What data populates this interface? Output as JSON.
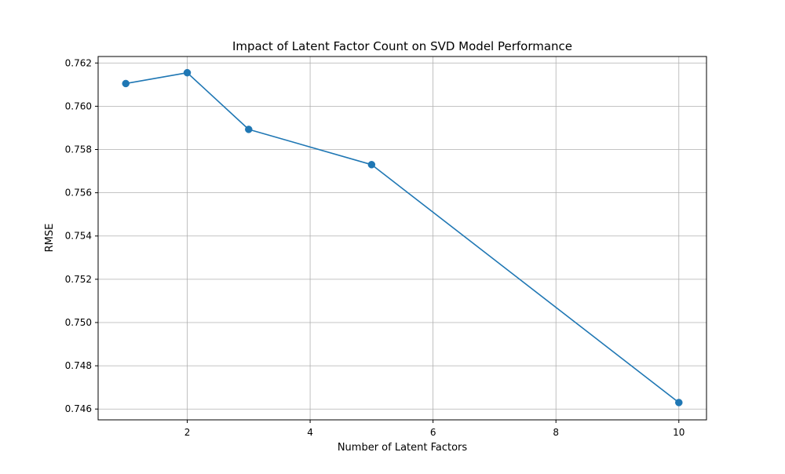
{
  "chart_data": {
    "type": "line",
    "title": "Impact of Latent Factor Count on SVD Model Performance",
    "xlabel": "Number of Latent Factors",
    "ylabel": "RMSE",
    "x": [
      1,
      2,
      3,
      5,
      10
    ],
    "series": [
      {
        "name": "",
        "values": [
          0.76105,
          0.76155,
          0.75893,
          0.7573,
          0.7463
        ],
        "color": "#1f77b4",
        "marker": "circle"
      }
    ],
    "xlim": [
      0.55,
      10.45
    ],
    "ylim": [
      0.7455,
      0.7623
    ],
    "xticks": [
      2,
      4,
      6,
      8,
      10
    ],
    "xtick_labels": [
      "2",
      "4",
      "6",
      "8",
      "10"
    ],
    "yticks": [
      0.746,
      0.748,
      0.75,
      0.752,
      0.754,
      0.756,
      0.758,
      0.76,
      0.762
    ],
    "ytick_labels": [
      "0.746",
      "0.748",
      "0.750",
      "0.752",
      "0.754",
      "0.756",
      "0.758",
      "0.760",
      "0.762"
    ],
    "grid": true,
    "grid_color": "#b0b0b0",
    "legend": "none"
  }
}
